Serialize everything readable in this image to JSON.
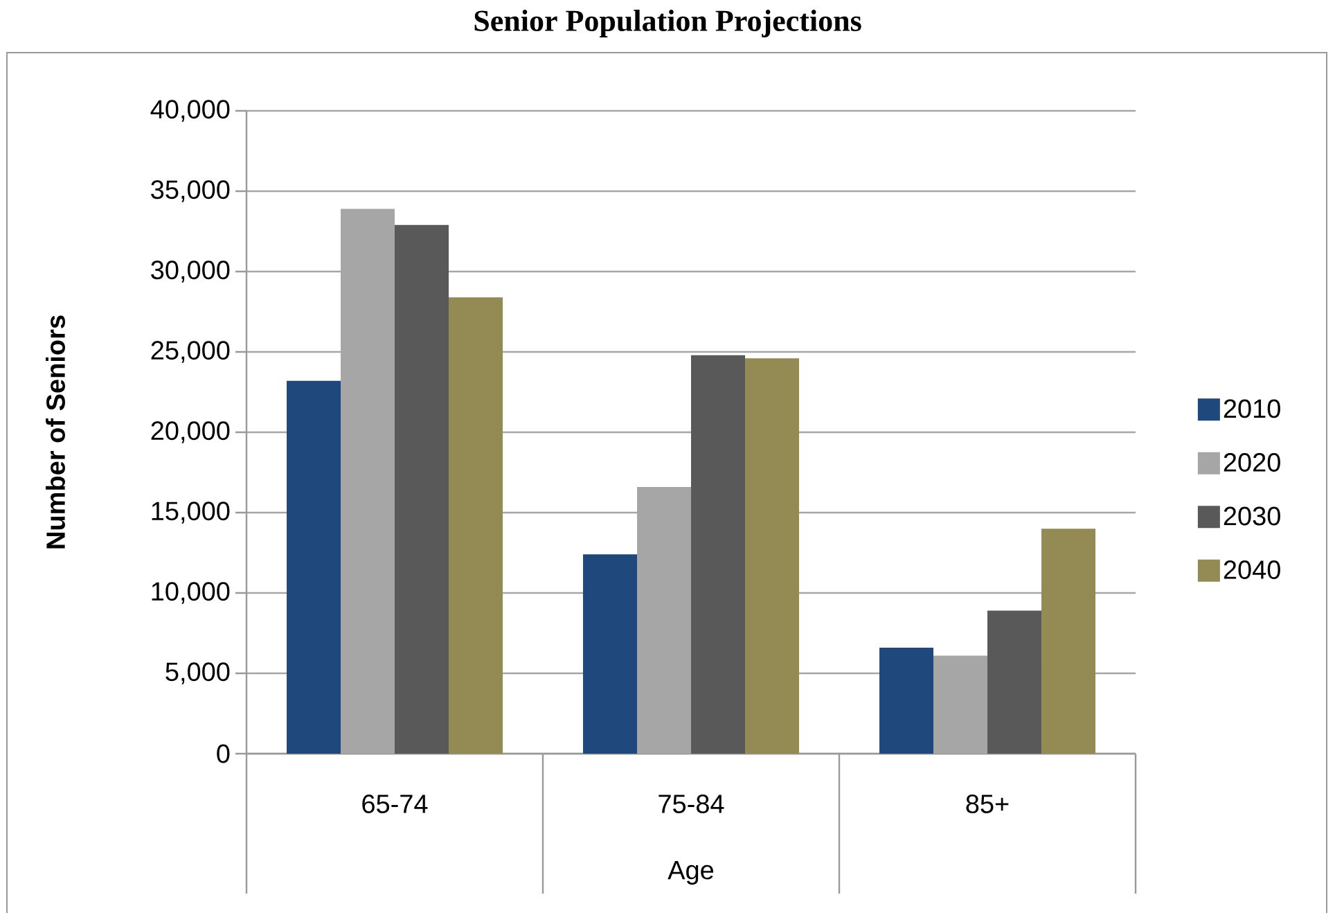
{
  "chart_data": {
    "type": "bar",
    "title": "Senior Population Projections",
    "xlabel": "Age",
    "ylabel": "Number of Seniors",
    "categories": [
      "65-74",
      "75-84",
      "85+"
    ],
    "series": [
      {
        "name": "2010",
        "color": "#1f497d",
        "values": [
          23200,
          12400,
          6600
        ]
      },
      {
        "name": "2020",
        "color": "#a6a6a6",
        "values": [
          33900,
          16600,
          6100
        ]
      },
      {
        "name": "2030",
        "color": "#595959",
        "values": [
          32900,
          24800,
          8900
        ]
      },
      {
        "name": "2040",
        "color": "#948a54",
        "values": [
          28400,
          24600,
          14000
        ]
      }
    ],
    "ylim": [
      0,
      40000
    ],
    "yticks": [
      0,
      {
        "value": 5000,
        "label": "5,000"
      },
      {
        "value": 10000,
        "label": "10,000"
      },
      {
        "value": 15000,
        "label": "15,000"
      },
      {
        "value": 20000,
        "label": "20,000"
      },
      {
        "value": 25000,
        "label": "25,000"
      },
      {
        "value": 30000,
        "label": "30,000"
      },
      {
        "value": 35000,
        "label": "35,000"
      },
      {
        "value": 40000,
        "label": "40,000"
      }
    ],
    "grid": "y",
    "legend": "right"
  }
}
